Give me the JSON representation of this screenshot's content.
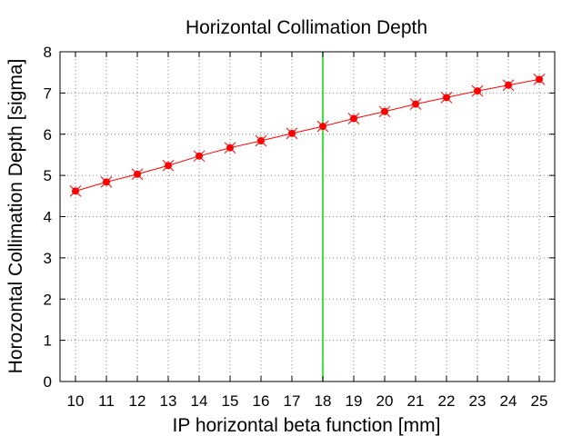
{
  "chart_data": {
    "type": "line",
    "title": "Horizontal Collimation Depth",
    "xlabel": "IP horizontal beta function [mm]",
    "ylabel": "Horozontal Collimation Depth [sigma]",
    "xlim": [
      9.5,
      25.5
    ],
    "ylim": [
      0,
      8
    ],
    "x_ticks": [
      10,
      11,
      12,
      13,
      14,
      15,
      16,
      17,
      18,
      19,
      20,
      21,
      22,
      23,
      24,
      25
    ],
    "y_ticks": [
      0,
      1,
      2,
      3,
      4,
      5,
      6,
      7,
      8
    ],
    "grid": true,
    "series": [
      {
        "color": "#ff0000",
        "marker": "star",
        "x": [
          10,
          11,
          12,
          13,
          14,
          15,
          16,
          17,
          18,
          19,
          20,
          21,
          22,
          23,
          24,
          25
        ],
        "y": [
          4.62,
          4.84,
          5.03,
          5.24,
          5.47,
          5.67,
          5.84,
          6.02,
          6.19,
          6.38,
          6.55,
          6.73,
          6.89,
          7.05,
          7.19,
          7.33
        ]
      }
    ],
    "vertical_line": {
      "x": 18,
      "color": "#00dd00"
    }
  }
}
